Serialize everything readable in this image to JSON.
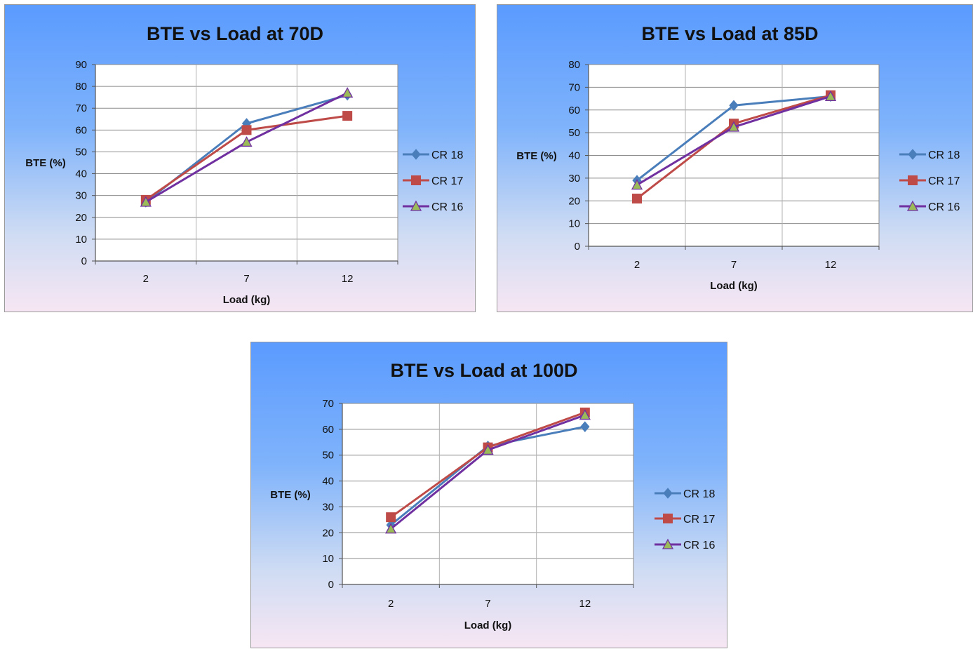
{
  "chart_data": [
    {
      "type": "line",
      "title": "BTE vs Load at 70D",
      "xlabel": "Load (kg)",
      "ylabel": "BTE (%)",
      "categories": [
        "2",
        "7",
        "12"
      ],
      "ylim": [
        0,
        90
      ],
      "ytick_step": 10,
      "grid": true,
      "legend": "right",
      "series": [
        {
          "name": "CR 18",
          "values": [
            27,
            63,
            76
          ],
          "color": "#4a7ebb",
          "marker": "diamond"
        },
        {
          "name": "CR 17",
          "values": [
            28,
            60,
            66.5
          ],
          "color": "#be4b48",
          "marker": "square"
        },
        {
          "name": "CR 16",
          "values": [
            27,
            54.5,
            77
          ],
          "color": "#7030a0",
          "marker": "triangle",
          "marker_fill": "#9bbb59"
        }
      ]
    },
    {
      "type": "line",
      "title": "BTE vs Load at 85D",
      "xlabel": "Load (kg)",
      "ylabel": "BTE (%)",
      "categories": [
        "2",
        "7",
        "12"
      ],
      "ylim": [
        0,
        80
      ],
      "ytick_step": 10,
      "grid": true,
      "legend": "right",
      "series": [
        {
          "name": "CR 18",
          "values": [
            29,
            62,
            66
          ],
          "color": "#4a7ebb",
          "marker": "diamond"
        },
        {
          "name": "CR 17",
          "values": [
            21,
            54,
            66.5
          ],
          "color": "#be4b48",
          "marker": "square"
        },
        {
          "name": "CR 16",
          "values": [
            27,
            52.5,
            66
          ],
          "color": "#7030a0",
          "marker": "triangle",
          "marker_fill": "#9bbb59"
        }
      ]
    },
    {
      "type": "line",
      "title": "BTE vs Load at 100D",
      "xlabel": "Load (kg)",
      "ylabel": "BTE (%)",
      "categories": [
        "2",
        "7",
        "12"
      ],
      "ylim": [
        0,
        70
      ],
      "ytick_step": 10,
      "grid": true,
      "legend": "right",
      "series": [
        {
          "name": "CR 18",
          "values": [
            23,
            53.5,
            61
          ],
          "color": "#4a7ebb",
          "marker": "diamond"
        },
        {
          "name": "CR 17",
          "values": [
            26,
            53,
            66.5
          ],
          "color": "#be4b48",
          "marker": "square"
        },
        {
          "name": "CR 16",
          "values": [
            21.5,
            52,
            65.5
          ],
          "color": "#7030a0",
          "marker": "triangle",
          "marker_fill": "#9bbb59"
        }
      ]
    }
  ]
}
